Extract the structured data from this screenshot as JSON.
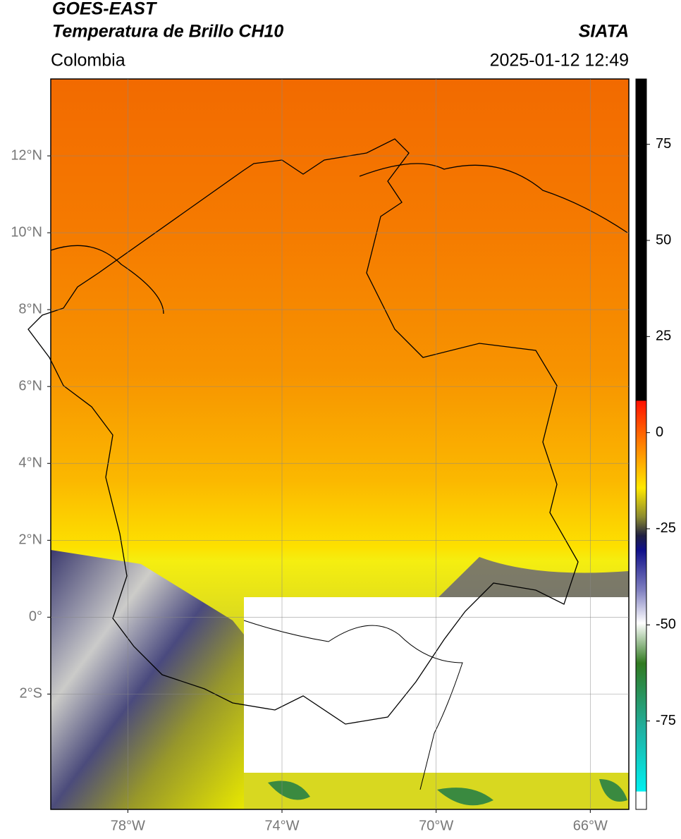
{
  "header": {
    "title": "GOES-EAST",
    "subtitle": "Temperatura de Brillo CH10",
    "source": "SIATA",
    "region": "Colombia",
    "datetime": "2025-01-12 12:49"
  },
  "map": {
    "xlim": [
      -80,
      -65
    ],
    "ylim": [
      -5,
      14
    ],
    "xticks": [
      {
        "value": -78,
        "label": "78°W"
      },
      {
        "value": -74,
        "label": "74°W"
      },
      {
        "value": -70,
        "label": "70°W"
      },
      {
        "value": -66,
        "label": "66°W"
      }
    ],
    "yticks": [
      {
        "value": 12,
        "label": "12°N"
      },
      {
        "value": 10,
        "label": "10°N"
      },
      {
        "value": 8,
        "label": "8°N"
      },
      {
        "value": 6,
        "label": "6°N"
      },
      {
        "value": 4,
        "label": "4°N"
      },
      {
        "value": 2,
        "label": "2°N"
      },
      {
        "value": 0,
        "label": "0°"
      },
      {
        "value": -2,
        "label": "2°S"
      }
    ]
  },
  "colorbar": {
    "lim": [
      -98,
      92
    ],
    "ticks": [
      75,
      50,
      25,
      0,
      -25,
      -50,
      -75
    ]
  }
}
